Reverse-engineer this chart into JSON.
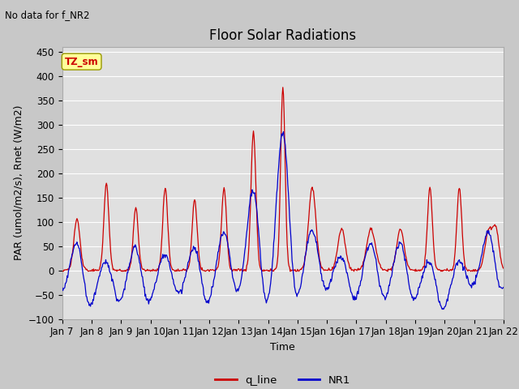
{
  "title": "Floor Solar Radiations",
  "subtitle": "No data for f_NR2",
  "xlabel": "Time",
  "ylabel": "PAR (umol/m2/s), Rnet (W/m2)",
  "ylim": [
    -100,
    460
  ],
  "yticks": [
    -100,
    -50,
    0,
    50,
    100,
    150,
    200,
    250,
    300,
    350,
    400,
    450
  ],
  "xlim": [
    0,
    360
  ],
  "xtick_labels": [
    "Jan 7",
    "Jan 8",
    "Jan 9",
    "Jan 10",
    "Jan 11",
    "Jan 12",
    "Jan 13",
    "Jan 14",
    "Jan 15",
    "Jan 16",
    "Jan 17",
    "Jan 18",
    "Jan 19",
    "Jan 20",
    "Jan 21",
    "Jan 22"
  ],
  "xtick_positions": [
    0,
    24,
    48,
    72,
    96,
    120,
    144,
    168,
    192,
    216,
    240,
    264,
    288,
    312,
    336,
    360
  ],
  "q_line_color": "#cc0000",
  "NR1_color": "#0000cc",
  "legend_label_q": "q_line",
  "legend_label_NR1": "NR1",
  "annotation_text": "TZ_sm",
  "annotation_color": "#cc0000",
  "annotation_bg": "#ffff99",
  "bg_color": "#c8c8c8",
  "plot_bg_color": "#e0e0e0",
  "grid_color": "#ffffff",
  "title_fontsize": 12,
  "axis_fontsize": 9,
  "tick_fontsize": 8.5
}
